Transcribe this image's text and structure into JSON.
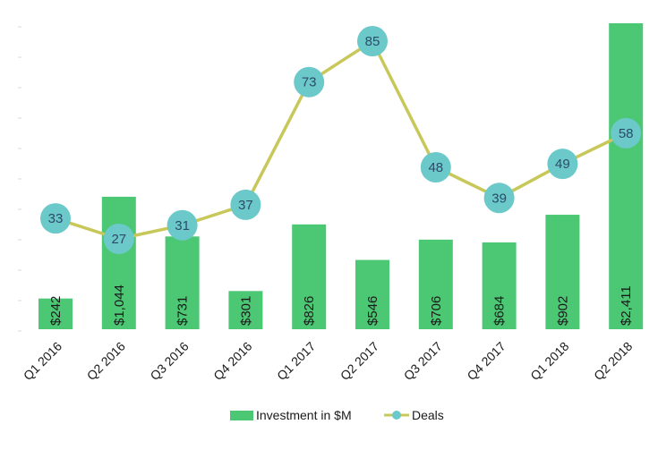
{
  "chart_data": {
    "type": "bar",
    "categories": [
      "Q1 2016",
      "Q2 2016",
      "Q3 2016",
      "Q4 2016",
      "Q1 2017",
      "Q2 2017",
      "Q3 2017",
      "Q4 2017",
      "Q1 2018",
      "Q2 2018"
    ],
    "series": [
      {
        "name": "Investment in $M",
        "kind": "bar",
        "values": [
          242,
          1044,
          731,
          301,
          826,
          546,
          706,
          684,
          902,
          2411
        ],
        "labels": [
          "$242",
          "$1,044",
          "$731",
          "$301",
          "$826",
          "$546",
          "$706",
          "$684",
          "$902",
          "$2,411"
        ],
        "color": "#4cc774"
      },
      {
        "name": "Deals",
        "kind": "line",
        "values": [
          33,
          27,
          31,
          37,
          73,
          85,
          48,
          39,
          49,
          58
        ],
        "labels": [
          "33",
          "27",
          "31",
          "37",
          "73",
          "85",
          "48",
          "39",
          "49",
          "58"
        ],
        "color": "#c8c85a",
        "marker_color": "#6cc9c9"
      }
    ],
    "ylim_bars": [
      0,
      2411
    ],
    "legend": "bottom",
    "grid": false
  }
}
